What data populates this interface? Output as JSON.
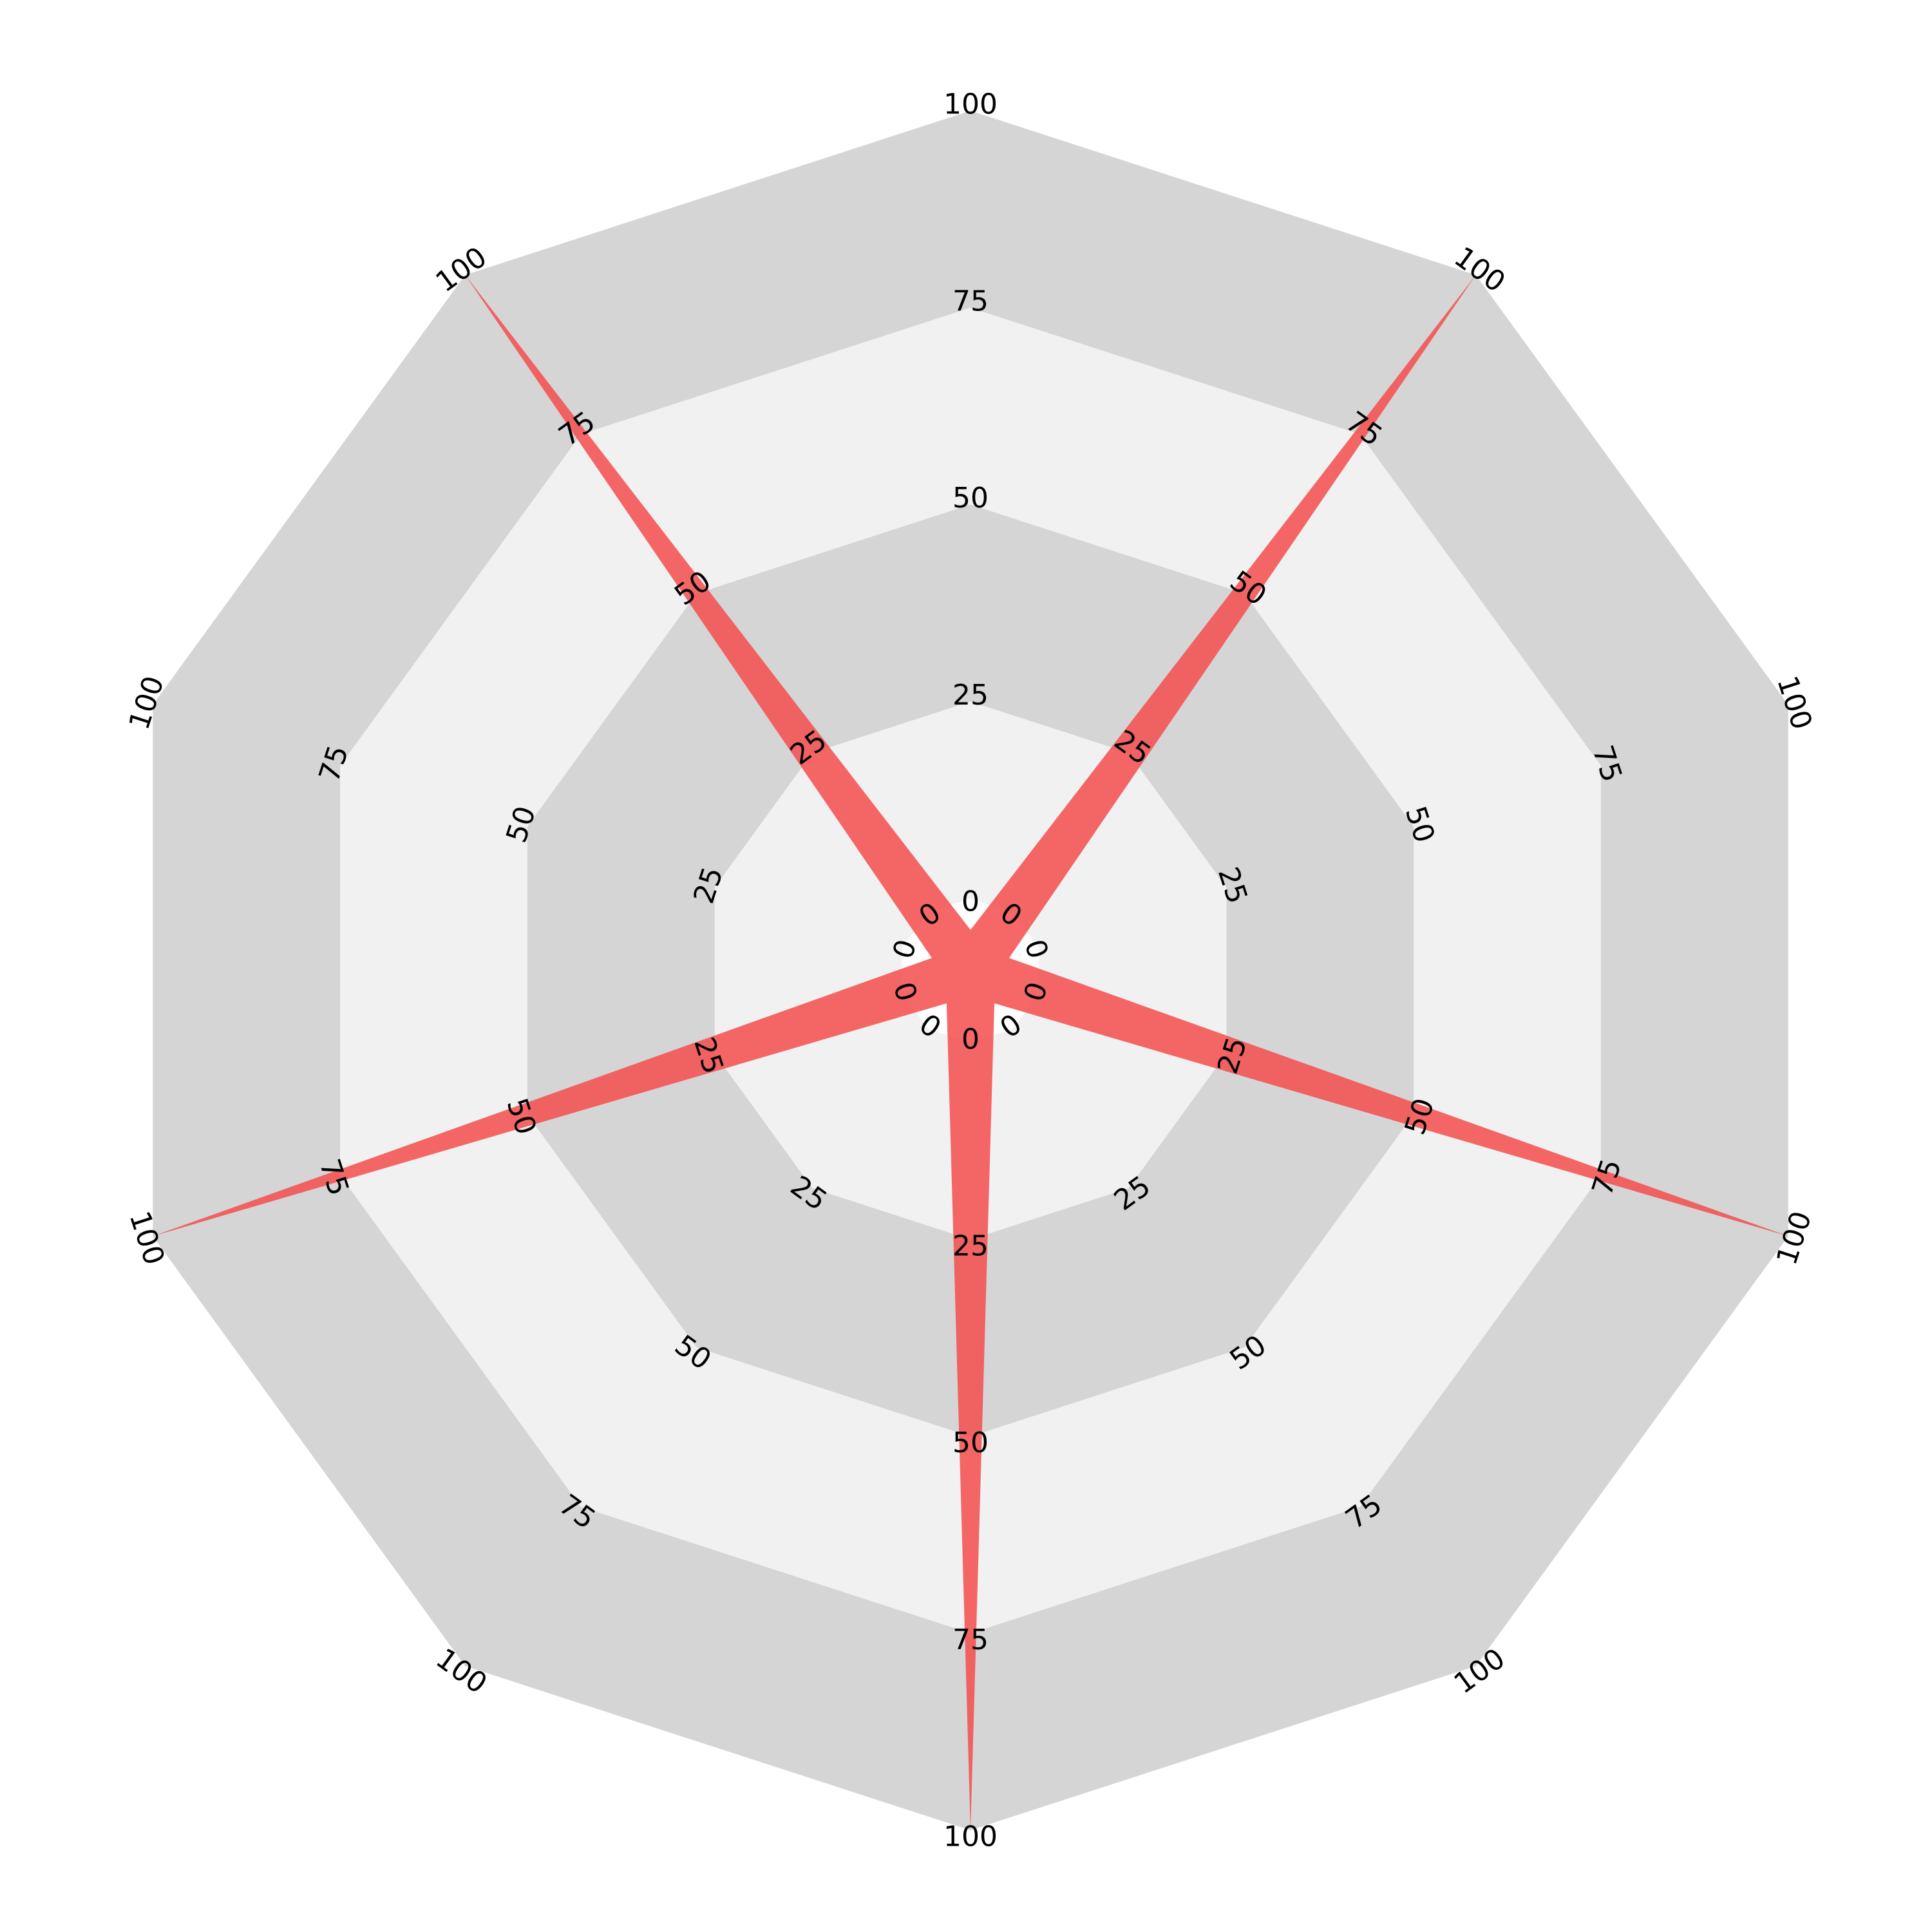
{
  "chart_data": {
    "type": "radar",
    "title": "",
    "axes_count": 10,
    "rlim": [
      0,
      100
    ],
    "inner_hole_value": 7.2,
    "rings": [
      25,
      50,
      75,
      100
    ],
    "ring_labels": [
      "0",
      "25",
      "50",
      "75",
      "100"
    ],
    "band_colors": [
      "#f1f1f1",
      "#d5d5d5"
    ],
    "series": [
      {
        "color": "#f44d4d",
        "values": [
          -4,
          100,
          -4,
          100,
          -4,
          100,
          -4,
          100,
          -4,
          100
        ]
      }
    ]
  }
}
